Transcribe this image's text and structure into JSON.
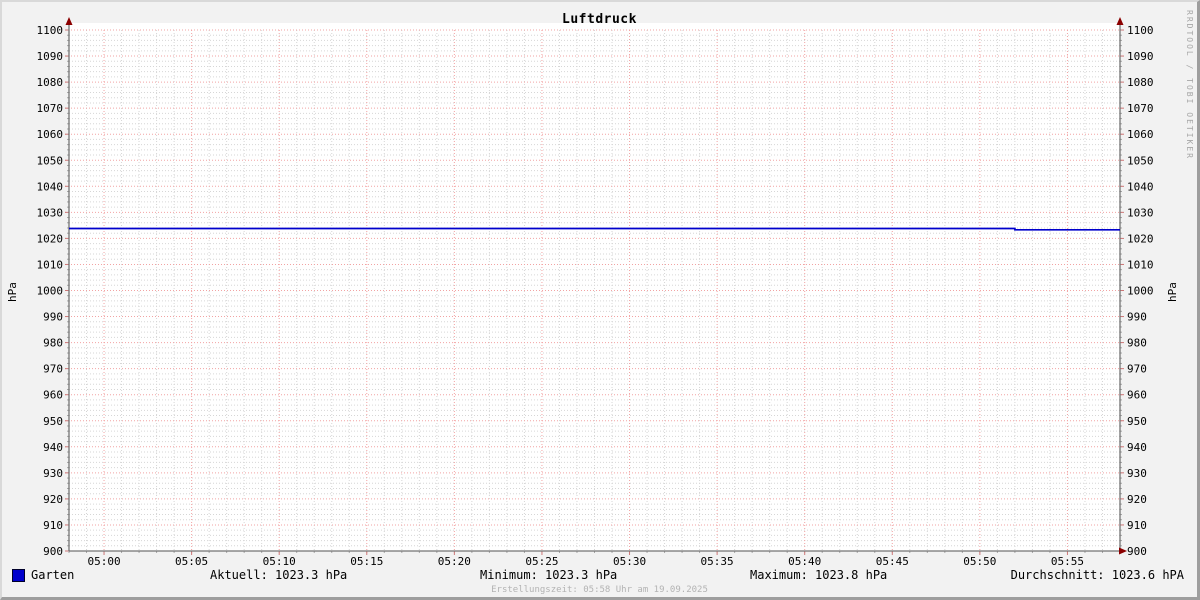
{
  "watermark": "RRDTOOL / TOBI OETIKER",
  "footer": {
    "created": "Erstellungszeit: 05:58 Uhr am 19.09.2025"
  },
  "legend": {
    "series_label": "Garten",
    "swatch_color": "#0000cc",
    "aktuell": "Aktuell: 1023.3 hPa",
    "minimum": "Minimum: 1023.3 hPa",
    "maximum": "Maximum: 1023.8 hPa",
    "durchschnitt": "Durchschnitt: 1023.6 hPA"
  },
  "colors": {
    "background": "#f2f2f2",
    "plot_bg": "#ffffff",
    "axis": "#737373",
    "arrow": "#8b0000",
    "tick_minor": "#a6a6a6",
    "tick_major": "#cc7777",
    "text": "#000000",
    "muted": "#b3b3b3"
  },
  "chart_data": {
    "type": "line",
    "title": "Luftdruck",
    "ylabel_left": "hPa",
    "ylabel_right": "hPa",
    "ylim": [
      900,
      1100
    ],
    "y_tick_step": 10,
    "y_minor_step": 2,
    "x_start": "04:58",
    "x_end": "05:58",
    "x_major_step_min": 5,
    "x_minor_step_min": 1,
    "y_ticks": [
      1100,
      1090,
      1080,
      1070,
      1060,
      1050,
      1040,
      1030,
      1020,
      1010,
      1000,
      990,
      980,
      970,
      960,
      950,
      940,
      930,
      920,
      910,
      900
    ],
    "x_ticks": [
      "05:00",
      "05:05",
      "05:10",
      "05:15",
      "05:20",
      "05:25",
      "05:30",
      "05:35",
      "05:40",
      "05:45",
      "05:50",
      "05:55"
    ],
    "grid": {
      "major_color": "#f2a3a3",
      "minor_color": "#d6d6d6",
      "style": "dotted"
    },
    "legend_position": "bottom",
    "series": [
      {
        "name": "Garten",
        "color": "#0000cc",
        "points": [
          [
            "04:58",
            1023.8
          ],
          [
            "05:52",
            1023.8
          ],
          [
            "05:52",
            1023.3
          ],
          [
            "05:58",
            1023.3
          ]
        ]
      }
    ]
  }
}
